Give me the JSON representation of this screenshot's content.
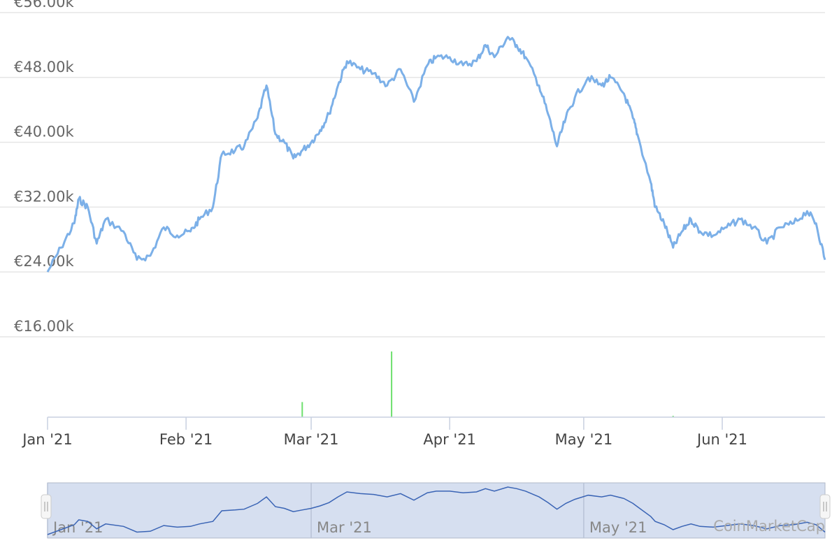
{
  "chart_data": {
    "type": "line",
    "title": "",
    "xlabel": "",
    "ylabel": "",
    "x_ticks": [
      "Jan '21",
      "Feb '21",
      "Mar '21",
      "Apr '21",
      "May '21",
      "Jun '21"
    ],
    "y_ticks": [
      "€16.00k",
      "€24.00k",
      "€32.00k",
      "€40.00k",
      "€48.00k",
      "€56.00k"
    ],
    "ylim": [
      16000,
      56000
    ],
    "x_range": [
      "2021-01-01",
      "2021-06-24"
    ],
    "grid": true,
    "series": [
      {
        "color": "#7cb0e8",
        "x": [
          "2021-01-01",
          "2021-01-04",
          "2021-01-07",
          "2021-01-08",
          "2021-01-10",
          "2021-01-12",
          "2021-01-14",
          "2021-01-18",
          "2021-01-21",
          "2021-01-24",
          "2021-01-27",
          "2021-01-30",
          "2021-02-02",
          "2021-02-04",
          "2021-02-07",
          "2021-02-09",
          "2021-02-12",
          "2021-02-14",
          "2021-02-17",
          "2021-02-19",
          "2021-02-21",
          "2021-02-23",
          "2021-02-25",
          "2021-02-27",
          "2021-03-01",
          "2021-03-03",
          "2021-03-05",
          "2021-03-07",
          "2021-03-09",
          "2021-03-12",
          "2021-03-15",
          "2021-03-18",
          "2021-03-21",
          "2021-03-24",
          "2021-03-27",
          "2021-03-29",
          "2021-04-01",
          "2021-04-04",
          "2021-04-07",
          "2021-04-09",
          "2021-04-11",
          "2021-04-14",
          "2021-04-16",
          "2021-04-18",
          "2021-04-21",
          "2021-04-23",
          "2021-04-25",
          "2021-04-27",
          "2021-04-29",
          "2021-05-02",
          "2021-05-05",
          "2021-05-07",
          "2021-05-10",
          "2021-05-12",
          "2021-05-13",
          "2021-05-16",
          "2021-05-17",
          "2021-05-19",
          "2021-05-21",
          "2021-05-23",
          "2021-05-25",
          "2021-05-27",
          "2021-05-30",
          "2021-06-02",
          "2021-06-05",
          "2021-06-08",
          "2021-06-11",
          "2021-06-14",
          "2021-06-17",
          "2021-06-20",
          "2021-06-22",
          "2021-06-24"
        ],
        "values": [
          24000,
          27000,
          30000,
          33000,
          32000,
          27500,
          30500,
          29000,
          25500,
          26000,
          29500,
          28500,
          29000,
          30500,
          32000,
          38500,
          39000,
          39500,
          43000,
          47000,
          41000,
          40000,
          38000,
          39000,
          40000,
          41500,
          43500,
          47000,
          50000,
          49000,
          48500,
          47000,
          49000,
          45000,
          49500,
          50500,
          50500,
          49500,
          50000,
          52000,
          50500,
          53000,
          52000,
          50500,
          47000,
          43500,
          39500,
          43000,
          45500,
          48000,
          47000,
          48000,
          46000,
          43000,
          41000,
          35000,
          32000,
          30000,
          27000,
          29000,
          30500,
          29000,
          28500,
          29500,
          30500,
          29500,
          27500,
          29500,
          30000,
          31500,
          30000,
          25500
        ]
      }
    ],
    "volume_spikes": [
      {
        "x": "2021-02-27",
        "value": 0.23
      },
      {
        "x": "2021-03-19",
        "value": 1.0
      },
      {
        "x": "2021-05-21",
        "value": 0.02
      }
    ],
    "navigator": {
      "labels": [
        "Jan '21",
        "Mar '21",
        "May '21"
      ],
      "credit": "CoinMarketCap"
    }
  }
}
